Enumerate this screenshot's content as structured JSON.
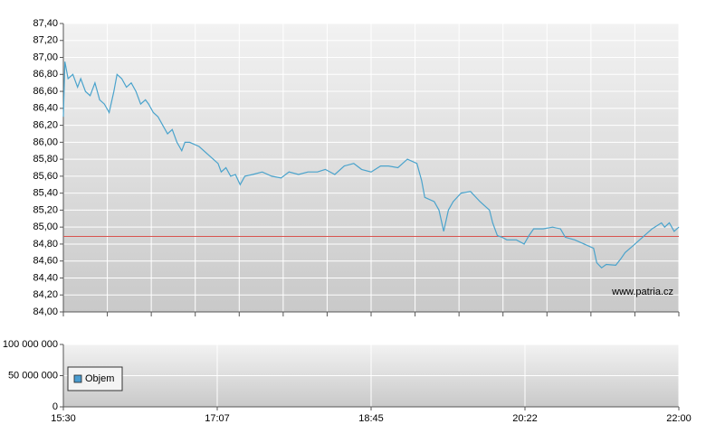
{
  "chart_data": [
    {
      "type": "line",
      "xlim": [
        0,
        390
      ],
      "xgrid": [
        0,
        27.86,
        55.71,
        83.57,
        111.43,
        139.29,
        167.14,
        195,
        222.86,
        250.71,
        278.57,
        306.43,
        334.29,
        362.14,
        390
      ],
      "ylim": [
        84.0,
        87.4
      ],
      "yticks": [
        {
          "value": 84.0,
          "label": "84,00"
        },
        {
          "value": 84.2,
          "label": "84,20"
        },
        {
          "value": 84.4,
          "label": "84,40"
        },
        {
          "value": 84.6,
          "label": "84,60"
        },
        {
          "value": 84.8,
          "label": "84,80"
        },
        {
          "value": 85.0,
          "label": "85,00"
        },
        {
          "value": 85.2,
          "label": "85,20"
        },
        {
          "value": 85.4,
          "label": "85,40"
        },
        {
          "value": 85.6,
          "label": "85,60"
        },
        {
          "value": 85.8,
          "label": "85,80"
        },
        {
          "value": 86.0,
          "label": "86,00"
        },
        {
          "value": 86.2,
          "label": "86,20"
        },
        {
          "value": 86.4,
          "label": "86,40"
        },
        {
          "value": 86.6,
          "label": "86,60"
        },
        {
          "value": 86.8,
          "label": "86,80"
        },
        {
          "value": 87.0,
          "label": "87,00"
        },
        {
          "value": 87.2,
          "label": "87,20"
        },
        {
          "value": 87.4,
          "label": "87,40"
        }
      ],
      "grid": true,
      "reference_line": {
        "value": 84.89,
        "color": "#d9534f"
      },
      "watermark": "www.patria.cz",
      "color": "#4aa3cc",
      "x": [
        0,
        1,
        3,
        6,
        9,
        11,
        14,
        17,
        20,
        23,
        26,
        29,
        32,
        34,
        37,
        40,
        43,
        46,
        49,
        52,
        54,
        57,
        60,
        63,
        66,
        69,
        72,
        75,
        77,
        80,
        86,
        92,
        98,
        100,
        103,
        106,
        109,
        112,
        115,
        120,
        126,
        132,
        138,
        143,
        149,
        155,
        161,
        166,
        172,
        178,
        184,
        189,
        195,
        201,
        206,
        212,
        218,
        224,
        227,
        229,
        235,
        238,
        241,
        244,
        247,
        252,
        258,
        264,
        270,
        272,
        275,
        278,
        281,
        287,
        292,
        295,
        298,
        304,
        310,
        315,
        318,
        324,
        330,
        336,
        338,
        341,
        344,
        350,
        353,
        356,
        361,
        367,
        373,
        379,
        381,
        384,
        387,
        390
      ],
      "values": [
        86.3,
        86.95,
        86.75,
        86.8,
        86.65,
        86.75,
        86.6,
        86.55,
        86.7,
        86.5,
        86.45,
        86.35,
        86.6,
        86.8,
        86.75,
        86.65,
        86.7,
        86.6,
        86.45,
        86.5,
        86.45,
        86.35,
        86.3,
        86.2,
        86.1,
        86.15,
        86.0,
        85.9,
        86.0,
        86.0,
        85.95,
        85.85,
        85.75,
        85.65,
        85.7,
        85.6,
        85.62,
        85.5,
        85.6,
        85.62,
        85.65,
        85.6,
        85.58,
        85.65,
        85.62,
        85.65,
        85.65,
        85.68,
        85.62,
        85.72,
        85.75,
        85.68,
        85.65,
        85.72,
        85.72,
        85.7,
        85.8,
        85.75,
        85.55,
        85.35,
        85.3,
        85.2,
        84.95,
        85.2,
        85.3,
        85.4,
        85.42,
        85.3,
        85.2,
        85.05,
        84.9,
        84.88,
        84.85,
        84.85,
        84.8,
        84.9,
        84.98,
        84.98,
        85.0,
        84.98,
        84.88,
        84.85,
        84.8,
        84.75,
        84.58,
        84.52,
        84.56,
        84.55,
        84.62,
        84.7,
        84.78,
        84.88,
        84.98,
        85.05,
        85.0,
        85.05,
        84.95,
        85.0
      ]
    },
    {
      "type": "bar",
      "xlim": [
        0,
        390
      ],
      "xticks": [
        {
          "value": 0,
          "label": "15:30"
        },
        {
          "value": 97.5,
          "label": "17:07"
        },
        {
          "value": 195,
          "label": "18:45"
        },
        {
          "value": 292.5,
          "label": "20:22"
        },
        {
          "value": 390,
          "label": "22:00"
        }
      ],
      "ylim": [
        0,
        100000000
      ],
      "yticks": [
        0,
        {
          "value": 50000000,
          "label": "50 000 000"
        },
        {
          "value": 100000000,
          "label": "100 000 000"
        }
      ],
      "grid": true,
      "series": [
        {
          "name": "Objem",
          "color": "#4a9cd0",
          "values": []
        }
      ]
    }
  ]
}
